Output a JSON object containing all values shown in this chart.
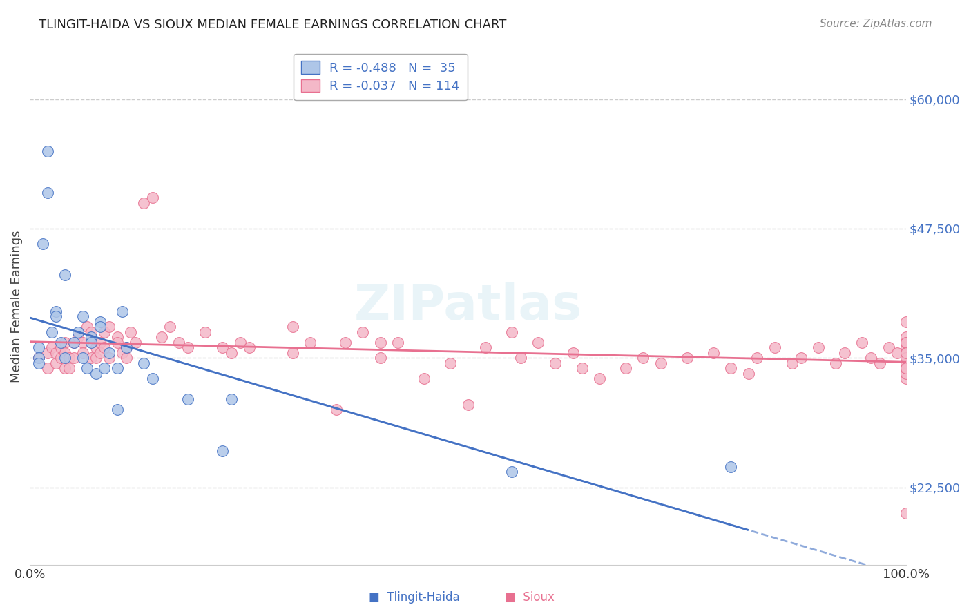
{
  "title": "TLINGIT-HAIDA VS SIOUX MEDIAN FEMALE EARNINGS CORRELATION CHART",
  "source": "Source: ZipAtlas.com",
  "xlabel": "",
  "ylabel": "Median Female Earnings",
  "xlim": [
    0.0,
    1.0
  ],
  "ylim": [
    15000,
    65000
  ],
  "yticks": [
    22500,
    35000,
    47500,
    60000
  ],
  "ytick_labels": [
    "$22,500",
    "$35,000",
    "$47,500",
    "$60,000"
  ],
  "xticks": [
    0.0,
    1.0
  ],
  "xtick_labels": [
    "0.0%",
    "100.0%"
  ],
  "grid_color": "#cccccc",
  "background_color": "#ffffff",
  "tlingit_color": "#aec6e8",
  "sioux_color": "#f4b8c8",
  "tlingit_line_color": "#4472c4",
  "sioux_line_color": "#e87090",
  "legend_r_tlingit": "R = -0.488",
  "legend_n_tlingit": "N =  35",
  "legend_r_sioux": "R = -0.037",
  "legend_n_sioux": "N = 114",
  "legend_text_color": "#4472c4",
  "watermark": "ZIPatlas",
  "tlingit_points_x": [
    0.01,
    0.01,
    0.01,
    0.015,
    0.02,
    0.02,
    0.025,
    0.03,
    0.03,
    0.035,
    0.04,
    0.04,
    0.05,
    0.055,
    0.06,
    0.06,
    0.065,
    0.07,
    0.07,
    0.075,
    0.08,
    0.08,
    0.085,
    0.09,
    0.1,
    0.1,
    0.105,
    0.11,
    0.13,
    0.14,
    0.18,
    0.22,
    0.23,
    0.55,
    0.8
  ],
  "tlingit_points_y": [
    36000,
    35000,
    34500,
    46000,
    55000,
    51000,
    37500,
    39500,
    39000,
    36500,
    35000,
    43000,
    36500,
    37500,
    39000,
    35000,
    34000,
    37000,
    36500,
    33500,
    38500,
    38000,
    34000,
    35500,
    34000,
    30000,
    39500,
    36000,
    34500,
    33000,
    31000,
    26000,
    31000,
    24000,
    24500
  ],
  "sioux_points_x": [
    0.01,
    0.02,
    0.02,
    0.025,
    0.03,
    0.03,
    0.035,
    0.035,
    0.04,
    0.04,
    0.04,
    0.045,
    0.045,
    0.05,
    0.05,
    0.055,
    0.06,
    0.06,
    0.065,
    0.07,
    0.07,
    0.075,
    0.075,
    0.08,
    0.08,
    0.085,
    0.085,
    0.09,
    0.09,
    0.1,
    0.1,
    0.105,
    0.11,
    0.11,
    0.115,
    0.12,
    0.13,
    0.14,
    0.15,
    0.16,
    0.17,
    0.18,
    0.2,
    0.22,
    0.23,
    0.24,
    0.25,
    0.3,
    0.3,
    0.32,
    0.35,
    0.36,
    0.38,
    0.4,
    0.4,
    0.42,
    0.45,
    0.48,
    0.5,
    0.52,
    0.55,
    0.56,
    0.58,
    0.6,
    0.62,
    0.63,
    0.65,
    0.68,
    0.7,
    0.72,
    0.75,
    0.78,
    0.8,
    0.82,
    0.83,
    0.85,
    0.87,
    0.88,
    0.9,
    0.92,
    0.93,
    0.95,
    0.96,
    0.97,
    0.98,
    0.99,
    1.0,
    1.0,
    1.0,
    1.0,
    1.0,
    1.0,
    1.0,
    1.0,
    1.0,
    1.0,
    1.0,
    1.0,
    1.0,
    1.0,
    1.0,
    1.0,
    1.0,
    1.0,
    1.0,
    1.0,
    1.0,
    1.0,
    1.0,
    1.0,
    1.0,
    1.0,
    1.0,
    1.0
  ],
  "sioux_points_y": [
    35000,
    35500,
    34000,
    36000,
    35500,
    34500,
    36000,
    35000,
    36500,
    35500,
    34000,
    35000,
    34000,
    36500,
    35000,
    37000,
    36500,
    35500,
    38000,
    37500,
    35000,
    36000,
    35000,
    36500,
    35500,
    37500,
    36000,
    38000,
    35000,
    37000,
    36500,
    35500,
    36000,
    35000,
    37500,
    36500,
    50000,
    50500,
    37000,
    38000,
    36500,
    36000,
    37500,
    36000,
    35500,
    36500,
    36000,
    38000,
    35500,
    36500,
    30000,
    36500,
    37500,
    36500,
    35000,
    36500,
    33000,
    34500,
    30500,
    36000,
    37500,
    35000,
    36500,
    34500,
    35500,
    34000,
    33000,
    34000,
    35000,
    34500,
    35000,
    35500,
    34000,
    33500,
    35000,
    36000,
    34500,
    35000,
    36000,
    34500,
    35500,
    36500,
    35000,
    34500,
    36000,
    35500,
    34000,
    35000,
    36500,
    33000,
    35000,
    34500,
    33500,
    35000,
    34500,
    34000,
    36000,
    35000,
    20000,
    34500,
    35000,
    38500,
    36000,
    35000,
    34500,
    37000,
    36500,
    35500,
    34000,
    35000,
    36500,
    35000,
    35500,
    34000
  ]
}
